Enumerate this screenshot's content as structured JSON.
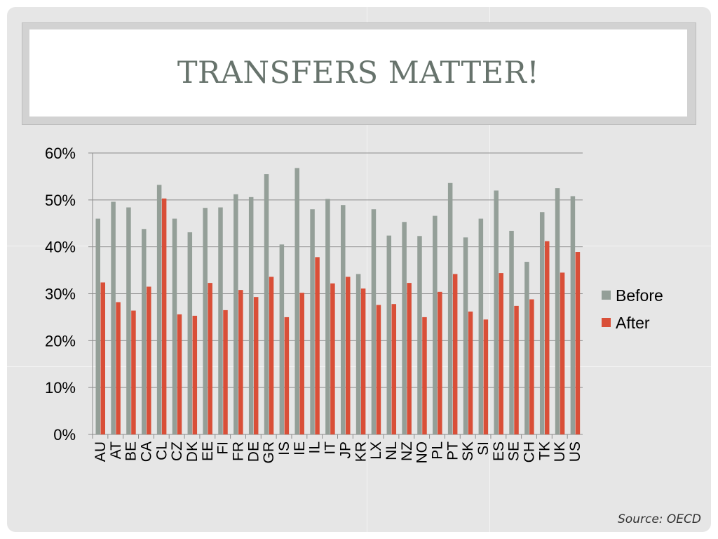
{
  "slide": {
    "title": "TRANSFERS MATTER!",
    "source": "Source: OECD"
  },
  "colors": {
    "before": "#949f98",
    "after": "#d94f38",
    "axis": "#8c8c8c",
    "gridline": "#8c8c8c",
    "text": "#000000"
  },
  "chart_data": {
    "type": "bar",
    "title": "",
    "xlabel": "",
    "ylabel": "",
    "ylim": [
      0,
      60
    ],
    "yticks": [
      "0%",
      "10%",
      "20%",
      "30%",
      "40%",
      "50%",
      "60%"
    ],
    "grid": "horizontal",
    "legend_position": "right",
    "categories": [
      "AU",
      "AT",
      "BE",
      "CA",
      "CL",
      "CZ",
      "DK",
      "EE",
      "FI",
      "FR",
      "DE",
      "GR",
      "IS",
      "IE",
      "IL",
      "IT",
      "JP",
      "KR",
      "LX",
      "NL",
      "NZ",
      "NO",
      "PL",
      "PT",
      "SK",
      "SI",
      "ES",
      "SE",
      "CH",
      "TK",
      "UK",
      "US"
    ],
    "series": [
      {
        "name": "Before",
        "values": [
          46.0,
          49.6,
          48.4,
          43.8,
          53.2,
          46.0,
          43.1,
          48.3,
          48.4,
          51.2,
          50.6,
          55.5,
          40.5,
          56.8,
          48.0,
          50.2,
          48.9,
          34.2,
          48.0,
          42.4,
          45.3,
          42.3,
          46.6,
          53.6,
          42.0,
          46.0,
          52.0,
          43.4,
          36.8,
          47.4,
          52.5,
          50.8
        ]
      },
      {
        "name": "After",
        "values": [
          32.4,
          28.2,
          26.4,
          31.5,
          50.3,
          25.6,
          25.3,
          32.3,
          26.5,
          30.8,
          29.3,
          33.6,
          25.0,
          30.2,
          37.8,
          32.2,
          33.6,
          31.1,
          27.6,
          27.8,
          32.3,
          25.0,
          30.4,
          34.2,
          26.2,
          24.5,
          34.4,
          27.4,
          28.8,
          41.2,
          34.5,
          38.9
        ]
      }
    ]
  }
}
